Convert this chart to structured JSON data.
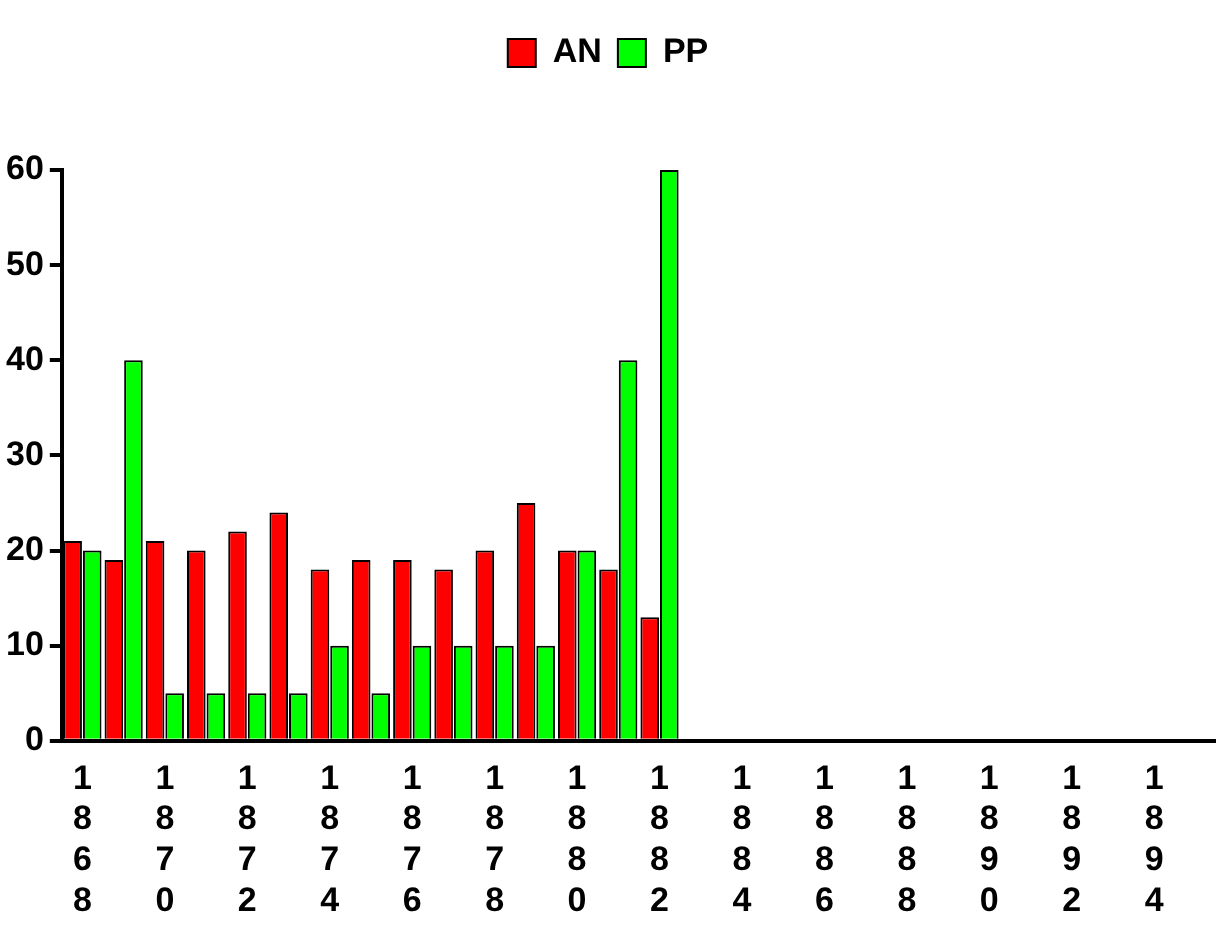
{
  "chart_data": {
    "type": "bar",
    "categories": [
      "1868",
      null,
      "1870",
      null,
      "1872",
      null,
      "1874",
      null,
      "1876",
      null,
      "1878",
      null,
      "1880",
      null,
      "1882",
      null,
      "1884",
      null,
      "1886",
      null,
      "1888",
      null,
      "1890",
      null,
      "1892",
      null,
      "1894",
      null
    ],
    "series": [
      {
        "name": "AN",
        "color": "#ff0000",
        "values": [
          21,
          19,
          21,
          20,
          22,
          24,
          18,
          19,
          19,
          18,
          20,
          25,
          20,
          18,
          13,
          null,
          null,
          null,
          null,
          null,
          null,
          null,
          null,
          null,
          null,
          null,
          null,
          null
        ]
      },
      {
        "name": "PP",
        "color": "#00ff00",
        "values": [
          20,
          40,
          5,
          5,
          5,
          5,
          10,
          5,
          10,
          10,
          10,
          10,
          20,
          40,
          60,
          null,
          null,
          null,
          null,
          null,
          null,
          null,
          null,
          null,
          null,
          null,
          null,
          null
        ]
      }
    ],
    "ylim": [
      0,
      60
    ],
    "yticks": [
      0,
      10,
      20,
      30,
      40,
      50,
      60
    ],
    "grid": false,
    "legend": "top"
  }
}
